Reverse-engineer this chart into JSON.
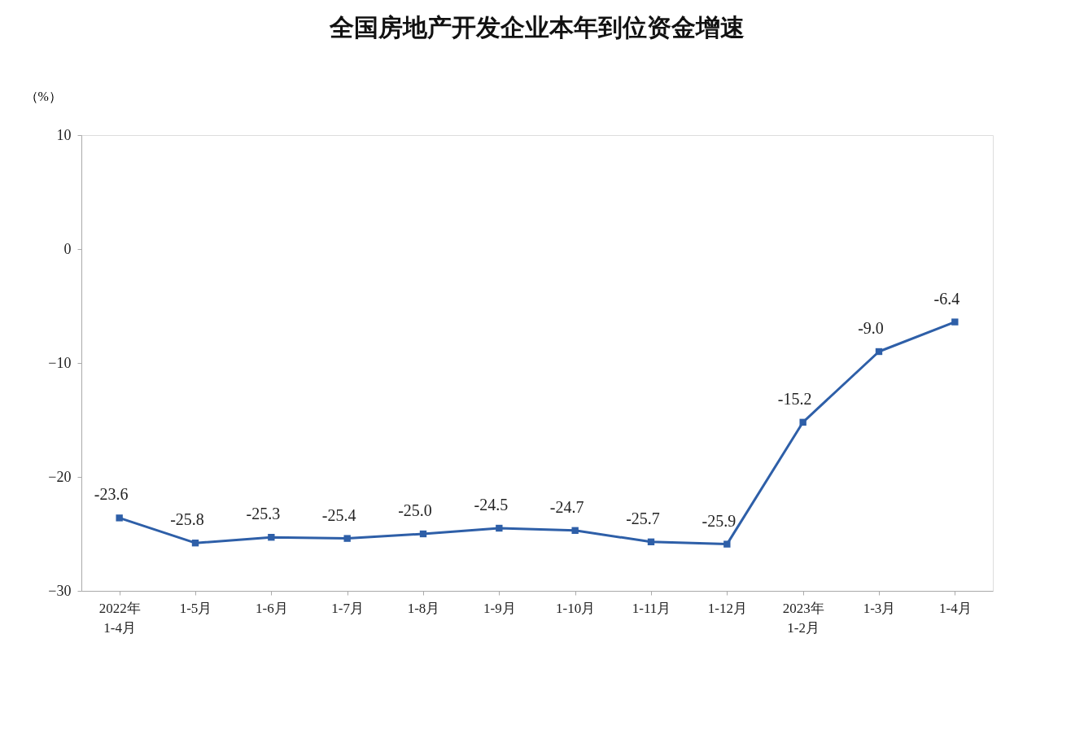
{
  "chart_data": {
    "type": "line",
    "title": "全国房地产开发企业本年到位资金增速",
    "ylabel": "（%）",
    "categories": [
      "2022年\n1-4月",
      "1-5月",
      "1-6月",
      "1-7月",
      "1-8月",
      "1-9月",
      "1-10月",
      "1-11月",
      "1-12月",
      "2023年\n1-2月",
      "1-3月",
      "1-4月"
    ],
    "series": [
      {
        "color": "#2e5fa8",
        "values": [
          -23.6,
          -25.8,
          -25.3,
          -25.4,
          -25.0,
          -24.5,
          -24.7,
          -25.7,
          -25.9,
          -15.2,
          -9.0,
          -6.4
        ],
        "value_labels": [
          "-23.6",
          "-25.8",
          "-25.3",
          "-25.4",
          "-25.0",
          "-24.5",
          "-24.7",
          "-25.7",
          "-25.9",
          "-15.2",
          "-9.0",
          "-6.4"
        ]
      }
    ],
    "ylim": [
      -30,
      10
    ],
    "yticks": [
      -30,
      -20,
      -10,
      0,
      10
    ],
    "grid": false,
    "marker": "square",
    "line_style": "solid"
  }
}
